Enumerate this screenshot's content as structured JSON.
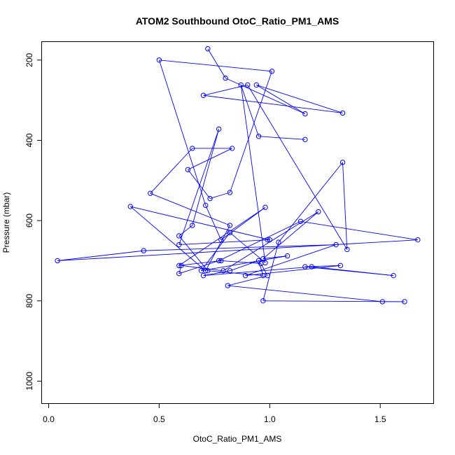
{
  "chart_data": {
    "type": "line",
    "title": "ATOM2 Southbound OtoC_Ratio_PM1_AMS",
    "xlabel": "OtoC_Ratio_PM1_AMS",
    "ylabel": "Pressure (mbar)",
    "xlim": [
      -0.03,
      1.74
    ],
    "ylim": [
      1055,
      155
    ],
    "y_reversed": true,
    "grid": false,
    "x_ticks": [
      0.0,
      0.5,
      1.0,
      1.5
    ],
    "x_tick_labels": [
      "0.0",
      "0.5",
      "1.0",
      "1.5"
    ],
    "y_ticks": [
      200,
      400,
      600,
      800,
      1000
    ],
    "y_tick_labels": [
      "200",
      "400",
      "600",
      "800",
      "1000"
    ],
    "series": [
      {
        "color": "#0000ff",
        "markers": "open-circle",
        "x": [
          0.72,
          0.8,
          1.16,
          0.94,
          1.33,
          0.7,
          0.9,
          1.35,
          1.33,
          1.04,
          0.97,
          1.61,
          1.51,
          0.81,
          0.99,
          0.96,
          0.78,
          0.59,
          0.98,
          0.78,
          0.71,
          0.5,
          1.01,
          0.82,
          0.73,
          0.63,
          0.83,
          0.65,
          0.46,
          0.82,
          0.71,
          0.37,
          1.0,
          0.99,
          0.59,
          0.77,
          0.65,
          0.59,
          0.72,
          0.97,
          0.95,
          0.82,
          0.7,
          1.19,
          1.56,
          1.16,
          1.32,
          0.89,
          1.3,
          0.43,
          0.04,
          1.67,
          1.14,
          0.77,
          0.59,
          0.6,
          0.79,
          1.22,
          0.97,
          1.08,
          0.69,
          0.82,
          0.98,
          0.87,
          0.95,
          1.16
        ],
        "y": [
          172,
          245,
          334,
          262,
          332,
          288,
          262,
          672,
          455,
          654,
          800,
          802,
          802,
          762,
          737,
          707,
          700,
          712,
          567,
          648,
          562,
          200,
          228,
          530,
          545,
          473,
          420,
          420,
          532,
          612,
          725,
          565,
          648,
          648,
          660,
          372,
          612,
          638,
          725,
          737,
          700,
          725,
          737,
          715,
          737,
          715,
          712,
          737,
          660,
          675,
          700,
          648,
          602,
          700,
          732,
          712,
          725,
          578,
          695,
          688,
          725,
          630,
          705,
          262,
          390,
          398
        ]
      }
    ]
  }
}
